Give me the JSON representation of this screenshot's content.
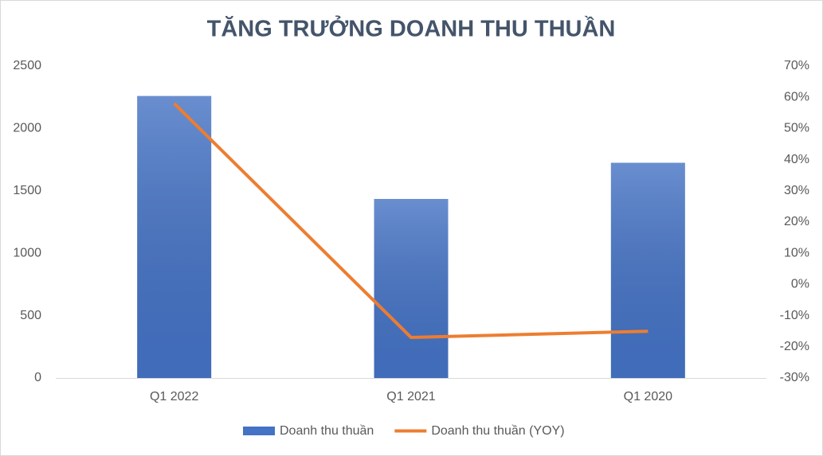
{
  "chart_data": {
    "type": "bar",
    "title": "TĂNG TRƯỞNG DOANH THU THUẦN",
    "categories": [
      "Q1 2022",
      "Q1 2021",
      "Q1 2020"
    ],
    "series": [
      {
        "name": "Doanh thu thuần",
        "type": "bar",
        "color": "#4472c4",
        "values": [
          2260,
          1435,
          1725
        ]
      },
      {
        "name": "Doanh thu thuần (YOY)",
        "type": "line",
        "axis": "y2",
        "color": "#ed7d31",
        "values": [
          58,
          -17,
          -15
        ]
      }
    ],
    "ylim": [
      0,
      2500
    ],
    "yticks": [
      0,
      500,
      1000,
      1500,
      2000,
      2500
    ],
    "y2lim": [
      -30,
      70
    ],
    "y2ticks": [
      {
        "value": -30,
        "label": "-30%"
      },
      {
        "value": -20,
        "label": "-20%"
      },
      {
        "value": -10,
        "label": "-10%"
      },
      {
        "value": 0,
        "label": "0%"
      },
      {
        "value": 10,
        "label": "10%"
      },
      {
        "value": 20,
        "label": "20%"
      },
      {
        "value": 30,
        "label": "30%"
      },
      {
        "value": 40,
        "label": "40%"
      },
      {
        "value": 50,
        "label": "50%"
      },
      {
        "value": 60,
        "label": "60%"
      },
      {
        "value": 70,
        "label": "70%"
      }
    ],
    "grid": false,
    "legend": "bottom"
  }
}
